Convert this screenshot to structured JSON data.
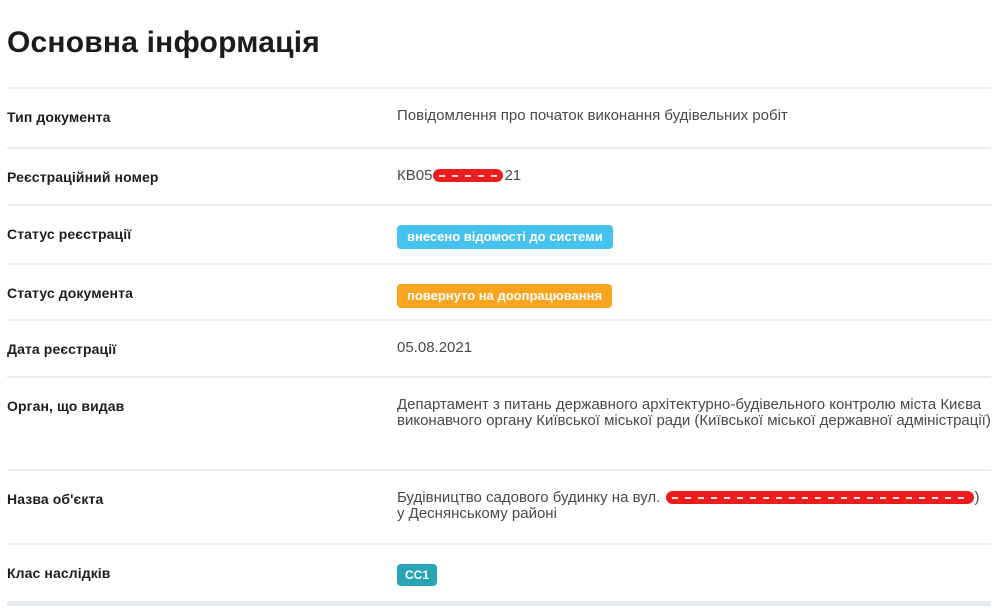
{
  "page": {
    "title": "Основна інформація"
  },
  "colors": {
    "badge_info": "#45c2ee",
    "badge_warning": "#f9a41f",
    "badge_class": "#28a5b4",
    "redaction": "#ee1d1d",
    "divider": "#e9eef3"
  },
  "rows": {
    "document_type": {
      "label": "Тип документа",
      "value": "Повідомлення про початок виконання будівельних робіт"
    },
    "registration_number": {
      "label": "Реєстраційний номер",
      "prefix": "КВ05",
      "suffix": "21"
    },
    "registration_status": {
      "label": "Статус реєстрації",
      "value": "внесено відомості до системи"
    },
    "document_status": {
      "label": "Статус документа",
      "value": "повернуто на доопрацювання"
    },
    "registration_date": {
      "label": "Дата реєстрації",
      "value": "05.08.2021"
    },
    "issuing_authority": {
      "label": "Орган, що видав",
      "value": "Департамент з питань державного архітектурно-будівельного контролю міста Києва виконавчого органу Київської міської ради (Київської міської державної адміністрації)"
    },
    "object_name": {
      "label": "Назва об'єкта",
      "prefix": "Будівництво садового будинку на вул. ",
      "suffix": ") у Деснянському районі"
    },
    "consequence_class": {
      "label": "Клас наслідків",
      "value": "СС1"
    }
  }
}
